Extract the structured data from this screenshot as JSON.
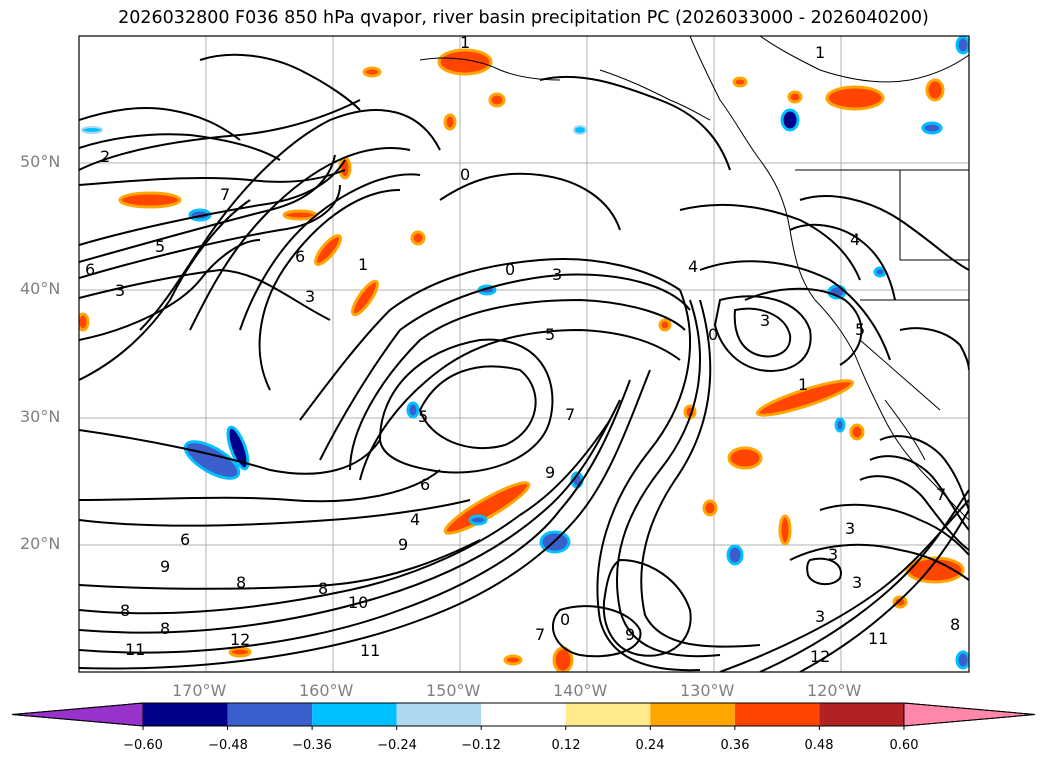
{
  "title": "2026032800 F036 850 hPa qvapor, river basin precipitation PC (2026033000 - 2026040200)",
  "map": {
    "latitude_labels": [
      "50°N",
      "40°N",
      "30°N",
      "20°N"
    ],
    "longitude_labels": [
      "170°W",
      "160°W",
      "150°W",
      "140°W",
      "130°W",
      "120°W"
    ],
    "lon_range": [
      -180,
      -110
    ],
    "lat_range": [
      10,
      60
    ],
    "contour_labels": [
      "1",
      "2",
      "3",
      "4",
      "5",
      "6",
      "7",
      "8",
      "9",
      "10",
      "11",
      "12",
      "0"
    ],
    "grid": true
  },
  "colorbar": {
    "ticks": [
      "−0.60",
      "−0.48",
      "−0.36",
      "−0.24",
      "−0.12",
      "0.12",
      "0.24",
      "0.36",
      "0.48",
      "0.60"
    ],
    "colors": [
      "#9932cc",
      "#00008b",
      "#3a5fcd",
      "#00bfff",
      "#add8f0",
      "#ffffff",
      "#ffe98a",
      "#ffa500",
      "#ff4500",
      "#b22222",
      "#ff88aa"
    ],
    "extend": "both"
  }
}
